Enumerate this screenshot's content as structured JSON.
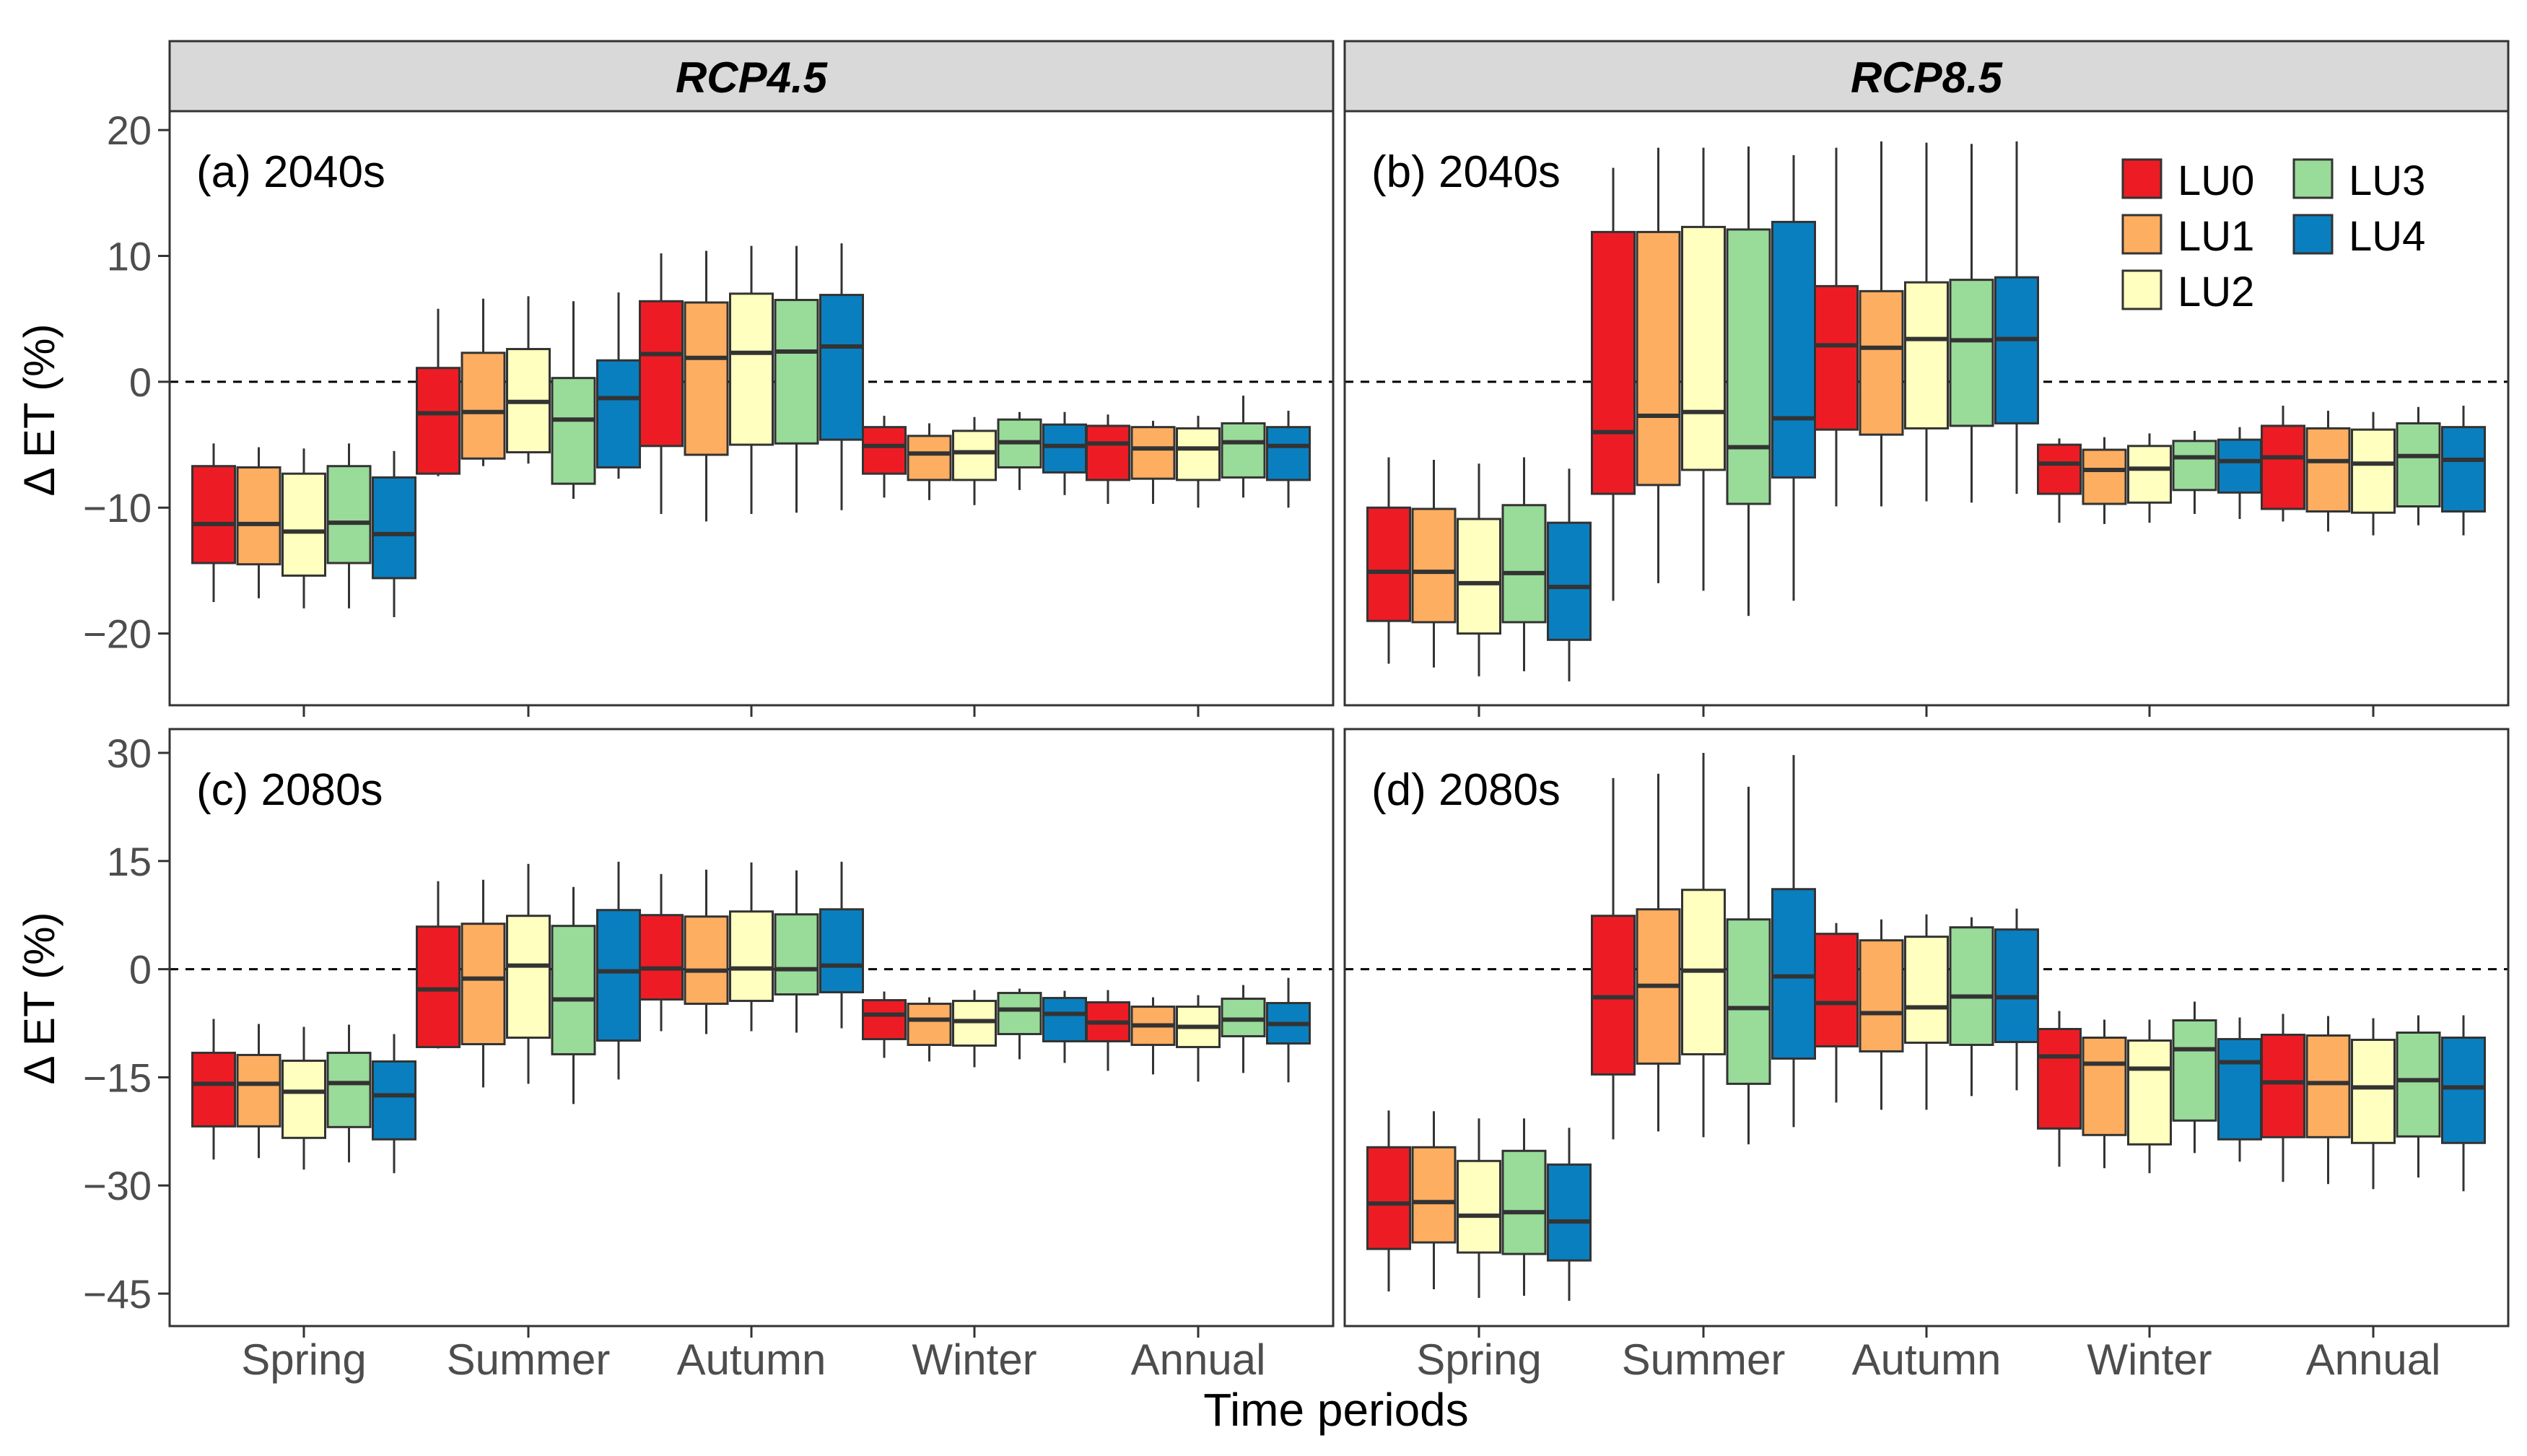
{
  "chart_data": {
    "type": "boxplot",
    "x_title": "Time periods",
    "y_title": "Δ ET (%)",
    "categories": [
      "Spring",
      "Summer",
      "Autumn",
      "Winter",
      "Annual"
    ],
    "legend": [
      {
        "label": "LU0",
        "color": "#ED1C24"
      },
      {
        "label": "LU1",
        "color": "#FDAE61"
      },
      {
        "label": "LU2",
        "color": "#FFFFBF"
      },
      {
        "label": "LU3",
        "color": "#99DB99"
      },
      {
        "label": "LU4",
        "color": "#0A7FBF"
      }
    ],
    "strips": {
      "left": "RCP4.5",
      "right": "RCP8.5"
    },
    "rows": [
      {
        "ylim": [
          -25.7,
          21.5
        ],
        "ticks": [
          -20,
          -10,
          0,
          10,
          20
        ],
        "tick_labels": [
          "−20",
          "−10",
          "0",
          "10",
          "20"
        ]
      },
      {
        "ylim": [
          -49.5,
          33.3
        ],
        "ticks": [
          -45,
          -30,
          -15,
          0,
          15,
          30
        ],
        "tick_labels": [
          "−45",
          "−30",
          "−15",
          "0",
          "15",
          "30"
        ]
      }
    ],
    "panels": [
      {
        "label": "(a) 2040s",
        "row": 0,
        "col": 0,
        "boxes": [
          [
            [
              -17.5,
              -14.4,
              -11.3,
              -6.7,
              -4.9
            ],
            [
              -17.2,
              -14.5,
              -11.3,
              -6.8,
              -5.2
            ],
            [
              -18.0,
              -15.4,
              -11.9,
              -7.3,
              -5.3
            ],
            [
              -18.0,
              -14.4,
              -11.2,
              -6.7,
              -4.9
            ],
            [
              -18.7,
              -15.6,
              -12.1,
              -7.6,
              -5.5
            ]
          ],
          [
            [
              -7.5,
              -7.3,
              -2.5,
              1.1,
              5.8
            ],
            [
              -6.7,
              -6.1,
              -2.4,
              2.3,
              6.6
            ],
            [
              -6.5,
              -5.6,
              -1.6,
              2.6,
              6.8
            ],
            [
              -9.3,
              -8.1,
              -3.0,
              0.3,
              6.4
            ],
            [
              -7.7,
              -6.8,
              -1.3,
              1.7,
              7.1
            ]
          ],
          [
            [
              -10.5,
              -5.1,
              2.2,
              6.4,
              10.2
            ],
            [
              -11.1,
              -5.8,
              1.9,
              6.3,
              10.4
            ],
            [
              -10.5,
              -5.0,
              2.3,
              7.0,
              10.8
            ],
            [
              -10.4,
              -4.9,
              2.4,
              6.5,
              10.8
            ],
            [
              -10.2,
              -4.6,
              2.8,
              6.9,
              11.0
            ]
          ],
          [
            [
              -9.2,
              -7.3,
              -5.1,
              -3.6,
              -2.7
            ],
            [
              -9.4,
              -7.8,
              -5.7,
              -4.3,
              -3.3
            ],
            [
              -9.8,
              -7.8,
              -5.6,
              -3.9,
              -2.8
            ],
            [
              -8.6,
              -6.8,
              -4.8,
              -3.0,
              -2.4
            ],
            [
              -9.0,
              -7.2,
              -5.1,
              -3.4,
              -2.4
            ]
          ],
          [
            [
              -9.7,
              -7.8,
              -4.9,
              -3.5,
              -2.6
            ],
            [
              -9.7,
              -7.7,
              -5.3,
              -3.6,
              -3.1
            ],
            [
              -10.0,
              -7.8,
              -5.3,
              -3.7,
              -2.7
            ],
            [
              -9.2,
              -7.6,
              -4.8,
              -3.3,
              -1.1
            ],
            [
              -10.0,
              -7.8,
              -5.1,
              -3.6,
              -2.3
            ]
          ]
        ]
      },
      {
        "label": "(b) 2040s",
        "row": 0,
        "col": 1,
        "boxes": [
          [
            [
              -22.4,
              -19.0,
              -15.1,
              -10.0,
              -6.0
            ],
            [
              -22.7,
              -19.1,
              -15.1,
              -10.1,
              -6.2
            ],
            [
              -23.4,
              -20.0,
              -16.0,
              -10.9,
              -6.5
            ],
            [
              -23.0,
              -19.1,
              -15.2,
              -9.8,
              -6.0
            ],
            [
              -23.8,
              -20.5,
              -16.3,
              -11.2,
              -6.9
            ]
          ],
          [
            [
              -17.4,
              -8.9,
              -4.0,
              11.9,
              17.0
            ],
            [
              -16.0,
              -8.2,
              -2.7,
              11.9,
              18.6
            ],
            [
              -16.6,
              -7.0,
              -2.4,
              12.3,
              18.6
            ],
            [
              -18.6,
              -9.7,
              -5.2,
              12.1,
              18.7
            ],
            [
              -17.4,
              -7.6,
              -2.9,
              12.7,
              18.0
            ]
          ],
          [
            [
              -9.9,
              -3.8,
              2.9,
              7.6,
              18.6
            ],
            [
              -9.9,
              -4.2,
              2.7,
              7.2,
              19.1
            ],
            [
              -9.5,
              -3.7,
              3.4,
              7.9,
              19.0
            ],
            [
              -9.6,
              -3.5,
              3.3,
              8.1,
              18.9
            ],
            [
              -8.9,
              -3.3,
              3.4,
              8.3,
              19.1
            ]
          ],
          [
            [
              -11.2,
              -8.9,
              -6.5,
              -5.0,
              -4.5
            ],
            [
              -11.3,
              -9.7,
              -7.0,
              -5.4,
              -4.4
            ],
            [
              -11.2,
              -9.6,
              -6.9,
              -5.1,
              -4.1
            ],
            [
              -10.5,
              -8.6,
              -6.0,
              -4.7,
              -3.9
            ],
            [
              -10.9,
              -8.8,
              -6.3,
              -4.6,
              -3.6
            ]
          ],
          [
            [
              -11.1,
              -10.1,
              -6.0,
              -3.5,
              -1.9
            ],
            [
              -11.9,
              -10.3,
              -6.3,
              -3.7,
              -2.3
            ],
            [
              -12.2,
              -10.4,
              -6.5,
              -3.8,
              -2.4
            ],
            [
              -11.4,
              -9.9,
              -5.9,
              -3.3,
              -2.0
            ],
            [
              -12.2,
              -10.3,
              -6.2,
              -3.6,
              -1.9
            ]
          ]
        ]
      },
      {
        "label": "(c) 2080s",
        "row": 1,
        "col": 0,
        "boxes": [
          [
            [
              -26.4,
              -21.8,
              -15.9,
              -11.6,
              -6.9
            ],
            [
              -26.2,
              -21.8,
              -15.9,
              -11.9,
              -7.6
            ],
            [
              -27.8,
              -23.4,
              -17.0,
              -12.7,
              -8.0
            ],
            [
              -26.8,
              -21.9,
              -15.8,
              -11.6,
              -7.7
            ],
            [
              -28.3,
              -23.6,
              -17.5,
              -12.8,
              -9.0
            ]
          ],
          [
            [
              -11.0,
              -10.8,
              -2.8,
              5.9,
              12.2
            ],
            [
              -16.4,
              -10.4,
              -1.3,
              6.3,
              12.4
            ],
            [
              -15.9,
              -9.5,
              0.5,
              7.4,
              14.6
            ],
            [
              -18.7,
              -11.8,
              -4.2,
              6.0,
              11.4
            ],
            [
              -15.3,
              -9.9,
              -0.3,
              8.2,
              14.9
            ]
          ],
          [
            [
              -8.6,
              -4.2,
              0.1,
              7.5,
              13.2
            ],
            [
              -9.0,
              -4.8,
              -0.2,
              7.3,
              13.8
            ],
            [
              -8.6,
              -4.4,
              0.1,
              8.0,
              14.8
            ],
            [
              -8.8,
              -3.5,
              0.0,
              7.6,
              13.7
            ],
            [
              -8.2,
              -3.2,
              0.5,
              8.3,
              14.9
            ]
          ],
          [
            [
              -12.3,
              -9.7,
              -6.3,
              -4.3,
              -3.1
            ],
            [
              -12.8,
              -10.5,
              -7.0,
              -4.8,
              -3.9
            ],
            [
              -13.6,
              -10.6,
              -7.2,
              -4.4,
              -2.9
            ],
            [
              -12.5,
              -9.0,
              -5.6,
              -3.3,
              -2.7
            ],
            [
              -13.0,
              -10.0,
              -6.2,
              -4.0,
              -3.0
            ]
          ],
          [
            [
              -14.1,
              -10.0,
              -7.4,
              -4.6,
              -2.9
            ],
            [
              -14.6,
              -10.5,
              -7.8,
              -5.2,
              -3.9
            ],
            [
              -15.6,
              -10.8,
              -8.0,
              -5.2,
              -3.6
            ],
            [
              -14.4,
              -9.3,
              -7.0,
              -4.1,
              -2.2
            ],
            [
              -15.7,
              -10.3,
              -7.6,
              -4.7,
              -1.2
            ]
          ]
        ]
      },
      {
        "label": "(d) 2080s",
        "row": 1,
        "col": 1,
        "boxes": [
          [
            [
              -44.7,
              -38.8,
              -32.5,
              -24.7,
              -19.6
            ],
            [
              -44.4,
              -37.9,
              -32.3,
              -24.7,
              -19.7
            ],
            [
              -45.6,
              -39.3,
              -34.2,
              -26.6,
              -20.7
            ],
            [
              -45.3,
              -39.5,
              -33.7,
              -25.2,
              -20.7
            ],
            [
              -46.0,
              -40.4,
              -35.0,
              -27.1,
              -22.0
            ]
          ],
          [
            [
              -23.6,
              -14.6,
              -3.9,
              7.4,
              26.5
            ],
            [
              -22.5,
              -13.1,
              -2.3,
              8.3,
              27.1
            ],
            [
              -23.3,
              -11.8,
              -0.2,
              11.0,
              30.0
            ],
            [
              -24.3,
              -15.9,
              -5.4,
              6.9,
              25.3
            ],
            [
              -21.9,
              -12.4,
              -1.0,
              11.1,
              29.7
            ]
          ],
          [
            [
              -18.5,
              -10.7,
              -4.7,
              4.9,
              6.4
            ],
            [
              -19.5,
              -11.4,
              -6.1,
              4.0,
              6.9
            ],
            [
              -19.5,
              -10.2,
              -5.3,
              4.5,
              7.6
            ],
            [
              -17.6,
              -10.5,
              -3.8,
              5.8,
              7.2
            ],
            [
              -16.8,
              -10.1,
              -3.9,
              5.5,
              8.4
            ]
          ],
          [
            [
              -27.4,
              -22.1,
              -12.1,
              -8.3,
              -5.8
            ],
            [
              -27.6,
              -23.0,
              -13.1,
              -9.5,
              -7.0
            ],
            [
              -28.3,
              -24.3,
              -13.8,
              -9.9,
              -7.0
            ],
            [
              -25.5,
              -21.0,
              -11.1,
              -7.1,
              -4.5
            ],
            [
              -26.7,
              -23.6,
              -12.9,
              -9.7,
              -6.7
            ]
          ],
          [
            [
              -29.5,
              -23.3,
              -15.7,
              -9.1,
              -6.2
            ],
            [
              -29.8,
              -23.3,
              -15.8,
              -9.2,
              -6.5
            ],
            [
              -30.5,
              -24.1,
              -16.4,
              -9.8,
              -6.8
            ],
            [
              -28.9,
              -23.2,
              -15.4,
              -8.8,
              -6.4
            ],
            [
              -30.8,
              -24.1,
              -16.4,
              -9.5,
              -6.4
            ]
          ]
        ]
      }
    ]
  }
}
